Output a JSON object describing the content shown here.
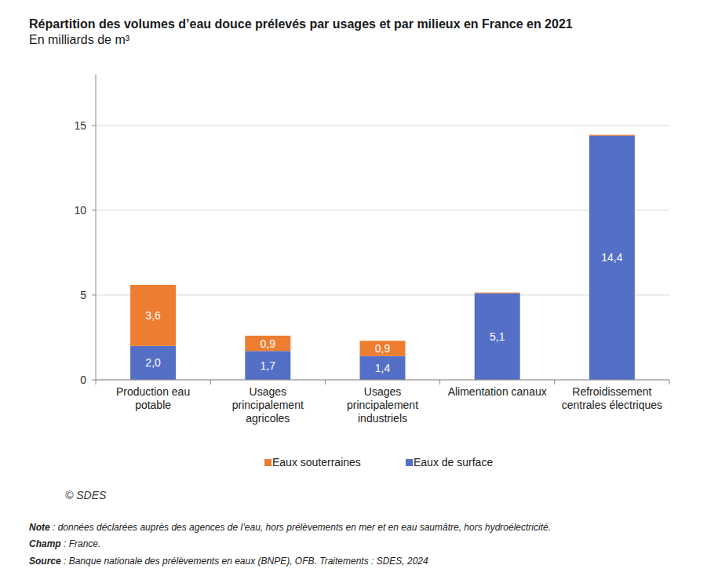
{
  "chart_data": {
    "type": "bar",
    "title": "Répartition des volumes d’eau douce prélevés par usages et par milieux en France en 2021",
    "subtitle": "En milliards de m³",
    "categories": [
      "Production eau potable",
      "Usages principalement agricoles",
      "Usages principalement industriels",
      "Alimentation canaux",
      "Refroidissement centrales électriques"
    ],
    "series": [
      {
        "name": "Eaux de surface",
        "color": "#5470c6",
        "values": [
          2.0,
          1.7,
          1.4,
          5.1,
          14.4
        ],
        "value_labels": [
          "2,0",
          "1,7",
          "1,4",
          "5,1",
          "14,4"
        ]
      },
      {
        "name": "Eaux souterraines",
        "color": "#ed7d31",
        "values": [
          3.6,
          0.9,
          0.9,
          0.05,
          0.05
        ],
        "value_labels": [
          "3,6",
          "0,9",
          "0,9",
          null,
          null
        ]
      }
    ],
    "stacked": true,
    "data_labels": true,
    "grid": true,
    "legend": "bottom",
    "ylim": [
      0,
      18
    ],
    "yticks": [
      0,
      5,
      10,
      15
    ],
    "credit": "© SDES",
    "notes": [
      {
        "label": "Note",
        "text": " : données déclarées auprès des agences de l’eau, hors prélèvements en mer et en eau saumâtre, hors hydroélectricité."
      },
      {
        "label": "Champ",
        "text": " : France."
      },
      {
        "label": "Source",
        "text": " : Banque nationale des prélèvements en eaux (BNPE), OFB. Traitements : SDES, 2024"
      }
    ]
  }
}
